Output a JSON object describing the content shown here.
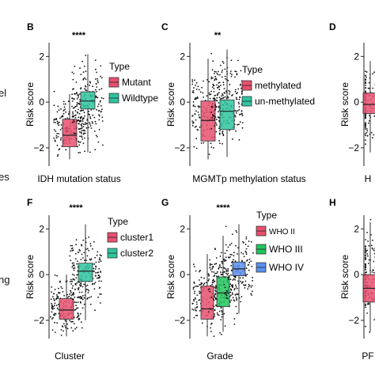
{
  "left_fragments": [
    "el",
    "l",
    "es",
    "ng"
  ],
  "chart_data": [
    {
      "type": "box",
      "panel": "B",
      "xlabel": "IDH mutation status",
      "ylabel": "Risk score",
      "ylim": [
        -2.8,
        2.6
      ],
      "yticks": [
        -2,
        0,
        2
      ],
      "significance": "****",
      "legend_title": "Type",
      "groups": [
        {
          "label": "Mutant",
          "color": "#e8506e",
          "q1": -1.95,
          "median": -1.45,
          "q3": -0.75,
          "whisker_low": -2.5,
          "whisker_high": 0.35
        },
        {
          "label": "Wildtype",
          "color": "#2ec4a0",
          "q1": -0.3,
          "median": 0.05,
          "q3": 0.45,
          "whisker_low": -2.2,
          "whisker_high": 2.1
        }
      ]
    },
    {
      "type": "box",
      "panel": "C",
      "xlabel": "MGMTp methylation status",
      "ylabel": "Risk score",
      "ylim": [
        -2.8,
        2.6
      ],
      "yticks": [
        -2,
        0,
        2
      ],
      "significance": "**",
      "legend_title": "Type",
      "groups": [
        {
          "label": "methylated",
          "color": "#e8506e",
          "q1": -1.7,
          "median": -0.8,
          "q3": 0.05,
          "whisker_low": -2.5,
          "whisker_high": 1.9
        },
        {
          "label": "un-methylated",
          "color": "#2ec4a0",
          "q1": -1.2,
          "median": -0.4,
          "q3": 0.1,
          "whisker_low": -2.4,
          "whisker_high": 2.3
        }
      ]
    },
    {
      "type": "box",
      "panel": "D",
      "xlabel": "H",
      "ylabel": "Risk score",
      "ylim": [
        -2.8,
        2.6
      ],
      "yticks": [
        -2,
        0,
        2
      ],
      "significance": "",
      "legend_title": "",
      "groups": [
        {
          "label": "",
          "color": "#e8506e",
          "q1": -0.5,
          "median": -0.1,
          "q3": 0.4,
          "whisker_low": -2.2,
          "whisker_high": 1.8
        }
      ]
    },
    {
      "type": "box",
      "panel": "F",
      "xlabel": "Cluster",
      "ylabel": "Risk score",
      "ylim": [
        -2.8,
        2.6
      ],
      "yticks": [
        -2,
        0,
        2
      ],
      "significance": "****",
      "legend_title": "Type",
      "groups": [
        {
          "label": "cluster1",
          "color": "#e8506e",
          "q1": -1.95,
          "median": -1.55,
          "q3": -1.05,
          "whisker_low": -2.7,
          "whisker_high": 0.0
        },
        {
          "label": "cluster2",
          "color": "#2ec4a0",
          "q1": -0.3,
          "median": 0.15,
          "q3": 0.5,
          "whisker_low": -2.0,
          "whisker_high": 2.2
        }
      ]
    },
    {
      "type": "box",
      "panel": "G",
      "xlabel": "Grade",
      "ylabel": "Risk score",
      "ylim": [
        -2.8,
        2.6
      ],
      "yticks": [
        -2,
        0,
        2
      ],
      "significance": "****",
      "legend_title": "Type",
      "groups": [
        {
          "label": "WHO II",
          "color": "#e8506e",
          "q1": -1.95,
          "median": -1.5,
          "q3": -0.5,
          "whisker_low": -2.7,
          "whisker_high": 0.9
        },
        {
          "label": "WHO III",
          "color": "#22c55e",
          "q1": -1.4,
          "median": -0.8,
          "q3": -0.1,
          "whisker_low": -2.5,
          "whisker_high": 1.7
        },
        {
          "label": "WHO IV",
          "color": "#5b8ff0",
          "q1": -0.05,
          "median": 0.25,
          "q3": 0.55,
          "whisker_low": -1.7,
          "whisker_high": 2.2
        }
      ]
    },
    {
      "type": "box",
      "panel": "H",
      "xlabel": "PF",
      "ylabel": "Risk score",
      "ylim": [
        -2.8,
        2.6
      ],
      "yticks": [
        -2,
        0,
        2
      ],
      "significance": "",
      "legend_title": "",
      "groups": [
        {
          "label": "",
          "color": "#e8506e",
          "q1": -1.2,
          "median": -0.6,
          "q3": 0.0,
          "whisker_low": -2.5,
          "whisker_high": 2.3
        }
      ]
    }
  ]
}
